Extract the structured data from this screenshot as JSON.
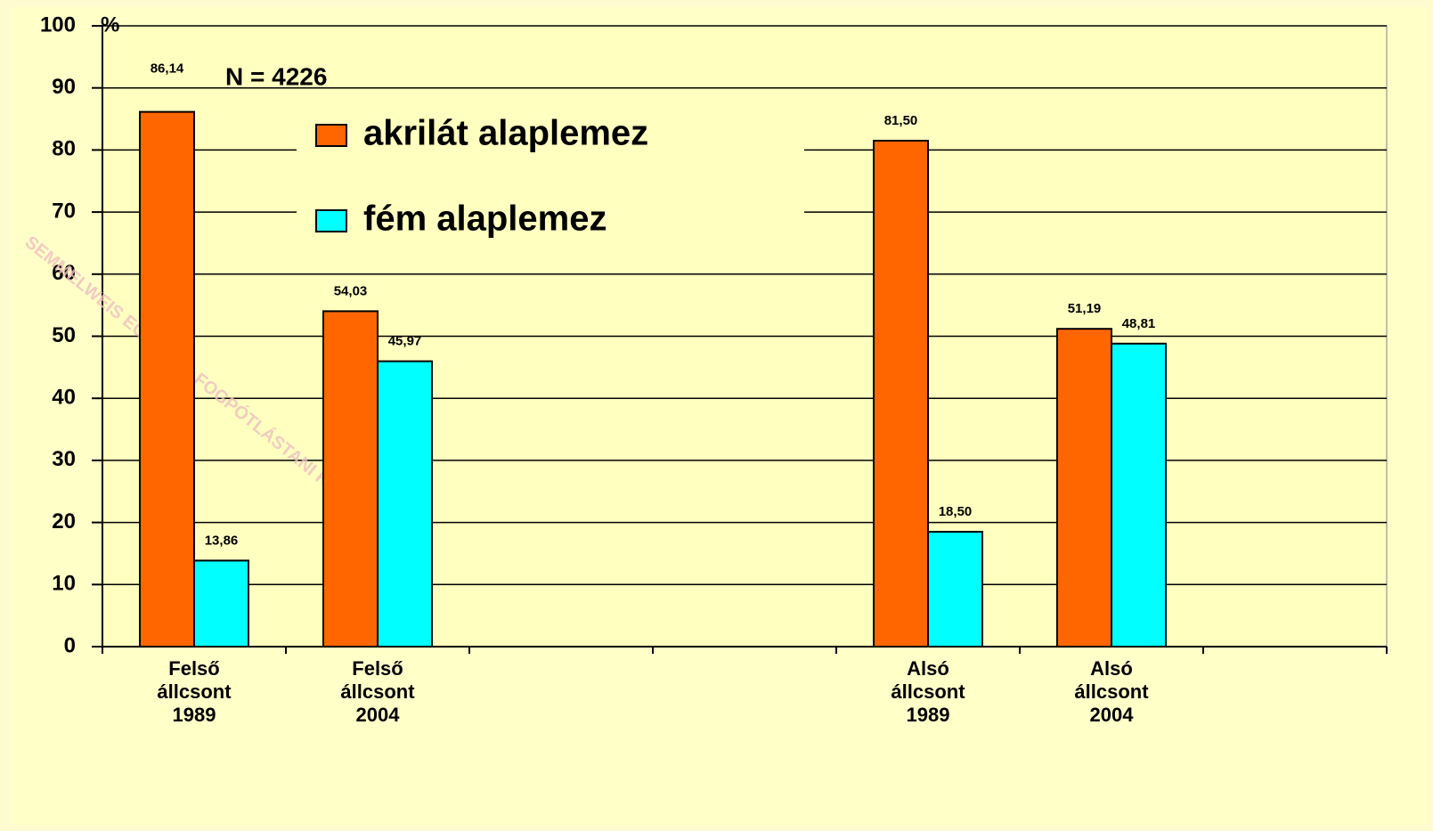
{
  "chart_data": {
    "type": "bar",
    "y_axis_label": "%",
    "annotations": [
      "N = 4226",
      "SEMMELWEIS EGYETEM FOGPÓTLÁSTANI KLINIKA"
    ],
    "categories": [
      "Felső állcsont 1989",
      "Felső állcsont 2004",
      null,
      null,
      "Alsó állcsont 1989",
      "Alsó állcsont 2004",
      null
    ],
    "series": [
      {
        "name": "akrilát alaplemez",
        "color": "#ff6600",
        "values": [
          86.14,
          54.03,
          null,
          null,
          81.5,
          51.19,
          null
        ],
        "value_labels": [
          "86,14",
          "54,03",
          null,
          null,
          "81,50",
          "51,19",
          null
        ]
      },
      {
        "name": "fém alaplemez",
        "color": "#00ffff",
        "values": [
          13.86,
          45.97,
          null,
          null,
          18.5,
          48.81,
          null
        ],
        "value_labels": [
          "13,86",
          "45,97",
          null,
          null,
          "18,50",
          "48,81",
          null
        ]
      }
    ],
    "ylim": [
      0,
      100
    ],
    "yticks": [
      0,
      10,
      20,
      30,
      40,
      50,
      60,
      70,
      80,
      90,
      100
    ],
    "grid": true
  }
}
